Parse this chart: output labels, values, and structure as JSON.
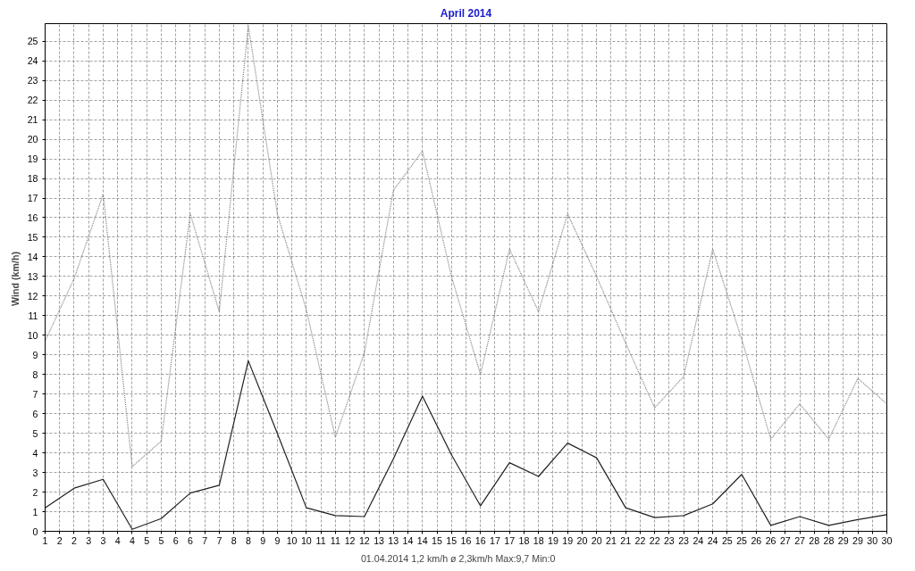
{
  "chart_data": {
    "type": "line",
    "title": "April 2014",
    "ylabel": "Wind  (km/h)",
    "annotations": [
      "01.04.2014   1,2 km/h   ø 2,3km/h  Max:9,7  Min:0"
    ],
    "x": [
      1,
      2,
      3,
      4,
      5,
      6,
      7,
      8,
      9,
      10,
      11,
      12,
      13,
      14,
      15,
      16,
      17,
      18,
      19,
      20,
      21,
      22,
      23,
      24,
      25,
      26,
      27,
      28,
      29,
      30
    ],
    "series": [
      {
        "color": "#808080",
        "line_style": "dotted",
        "values": [
          9.7,
          12.9,
          17.2,
          3.3,
          4.6,
          16.2,
          11.2,
          25.8,
          16.2,
          11.3,
          4.8,
          9.1,
          17.4,
          19.4,
          13.0,
          8.0,
          14.4,
          11.2,
          16.2,
          13.0,
          9.6,
          6.3,
          7.9,
          14.4,
          9.8,
          4.7,
          6.5,
          4.7,
          7.8,
          6.5
        ]
      },
      {
        "color": "#202020",
        "line_style": "solid",
        "values": [
          1.2,
          2.2,
          2.65,
          0.1,
          0.65,
          1.95,
          2.35,
          8.7,
          5.0,
          1.2,
          0.8,
          0.75,
          3.7,
          6.9,
          3.9,
          1.3,
          3.5,
          2.8,
          4.5,
          3.75,
          1.2,
          0.7,
          0.8,
          1.4,
          2.9,
          0.3,
          0.75,
          0.3,
          0.6,
          0.85
        ]
      }
    ],
    "xlim": [
      1,
      30
    ],
    "ylim": [
      0,
      25.9
    ],
    "xticks": [
      1,
      {
        "value": 1.5,
        "label": "2"
      },
      2,
      {
        "value": 2.5,
        "label": "3"
      },
      3,
      {
        "value": 3.5,
        "label": "4"
      },
      4,
      {
        "value": 4.5,
        "label": "5"
      },
      5,
      {
        "value": 5.5,
        "label": "6"
      },
      6,
      {
        "value": 6.5,
        "label": "7"
      },
      7,
      {
        "value": 7.5,
        "label": "8"
      },
      8,
      {
        "value": 8.5,
        "label": "9"
      },
      9,
      {
        "value": 9.5,
        "label": "10"
      },
      10,
      {
        "value": 10.5,
        "label": "11"
      },
      11,
      {
        "value": 11.5,
        "label": "12"
      },
      12,
      {
        "value": 12.5,
        "label": "13"
      },
      13,
      {
        "value": 13.5,
        "label": "14"
      },
      14,
      {
        "value": 14.5,
        "label": "15"
      },
      15,
      {
        "value": 15.5,
        "label": "16"
      },
      16,
      {
        "value": 16.5,
        "label": "17"
      },
      17,
      {
        "value": 17.5,
        "label": "18"
      },
      18,
      {
        "value": 18.5,
        "label": "19"
      },
      19,
      {
        "value": 19.5,
        "label": "20"
      },
      20,
      {
        "value": 20.5,
        "label": "21"
      },
      21,
      {
        "value": 21.5,
        "label": "22"
      },
      22,
      {
        "value": 22.5,
        "label": "23"
      },
      23,
      {
        "value": 23.5,
        "label": "24"
      },
      24,
      {
        "value": 24.5,
        "label": "25"
      },
      25,
      {
        "value": 25.5,
        "label": "26"
      },
      26,
      {
        "value": 26.5,
        "label": "27"
      },
      27,
      {
        "value": 27.5,
        "label": "28"
      },
      28,
      {
        "value": 28.5,
        "label": "29"
      },
      29,
      {
        "value": 29.5,
        "label": "30"
      },
      30
    ],
    "yticks": [
      0,
      1,
      2,
      3,
      4,
      5,
      6,
      7,
      8,
      9,
      10,
      11,
      12,
      13,
      14,
      15,
      16,
      17,
      18,
      19,
      20,
      21,
      22,
      23,
      24,
      25
    ],
    "grid": true
  }
}
